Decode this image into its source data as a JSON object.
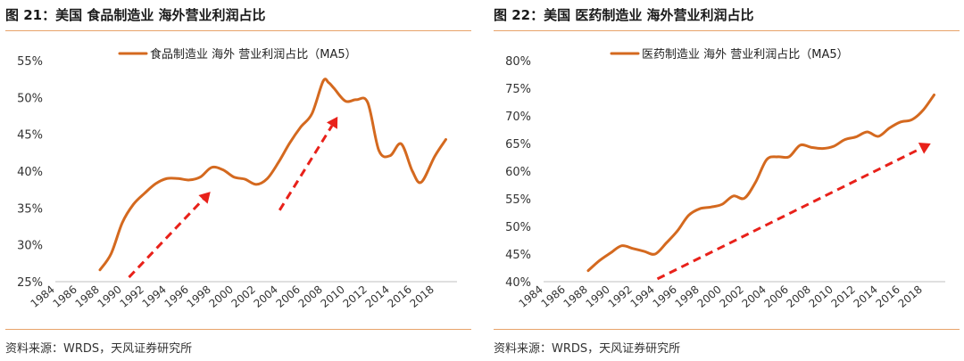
{
  "source_text": "资料来源：WRDS，天风证券研究所",
  "colors": {
    "line": "#d4691f",
    "arrow": "#e8211a",
    "rule": "#e8a36a"
  },
  "chart_data": [
    {
      "type": "line",
      "title": "图 21：美国  食品制造业  海外营业利润占比",
      "legend": "食品制造业 海外 营业利润占比（MA5）",
      "legend_position": "top",
      "ylim": [
        0.25,
        0.55
      ],
      "yticks": [
        {
          "v": 0.25,
          "label": "25%"
        },
        {
          "v": 0.3,
          "label": "30%"
        },
        {
          "v": 0.35,
          "label": "35%"
        },
        {
          "v": 0.4,
          "label": "40%"
        },
        {
          "v": 0.45,
          "label": "45%"
        },
        {
          "v": 0.5,
          "label": "50%"
        },
        {
          "v": 0.55,
          "label": "55%"
        }
      ],
      "xlim": [
        1984,
        2020
      ],
      "xticks": [
        "1984",
        "1986",
        "1988",
        "1990",
        "1992",
        "1994",
        "1996",
        "1998",
        "2000",
        "2002",
        "2004",
        "2006",
        "2008",
        "2010",
        "2012",
        "2014",
        "2016",
        "2018"
      ],
      "series": [
        {
          "name": "食品制造业 海外 营业利润占比（MA5）",
          "x": [
            1988,
            1989,
            1990,
            1991,
            1992,
            1993,
            1994,
            1995,
            1996,
            1997,
            1998,
            1999,
            2000,
            2001,
            2002,
            2003,
            2004,
            2005,
            2006,
            2007,
            2008,
            2008.5,
            2009,
            2010,
            2011,
            2012,
            2013,
            2014,
            2015,
            2016,
            2016.8,
            2018,
            2019
          ],
          "y": [
            0.266,
            0.288,
            0.33,
            0.355,
            0.37,
            0.383,
            0.39,
            0.39,
            0.388,
            0.392,
            0.405,
            0.402,
            0.392,
            0.389,
            0.382,
            0.39,
            0.412,
            0.438,
            0.46,
            0.478,
            0.522,
            0.52,
            0.512,
            0.495,
            0.497,
            0.493,
            0.428,
            0.421,
            0.437,
            0.4,
            0.385,
            0.42,
            0.443
          ]
        }
      ],
      "trend_arrows": [
        {
          "from": [
            1990.6,
            0.256
          ],
          "to": [
            1997.9,
            0.372
          ]
        },
        {
          "from": [
            2004.1,
            0.347
          ],
          "to": [
            2009.3,
            0.474
          ]
        }
      ]
    },
    {
      "type": "line",
      "title": "图 22：美国  医药制造业  海外营业利润占比",
      "legend": "医药制造业 海外 营业利润占比（MA5）",
      "legend_position": "top",
      "ylim": [
        0.4,
        0.8
      ],
      "yticks": [
        {
          "v": 0.4,
          "label": "40%"
        },
        {
          "v": 0.45,
          "label": "45%"
        },
        {
          "v": 0.5,
          "label": "50%"
        },
        {
          "v": 0.55,
          "label": "55%"
        },
        {
          "v": 0.6,
          "label": "60%"
        },
        {
          "v": 0.65,
          "label": "65%"
        },
        {
          "v": 0.7,
          "label": "70%"
        },
        {
          "v": 0.75,
          "label": "75%"
        },
        {
          "v": 0.8,
          "label": "80%"
        }
      ],
      "xlim": [
        1984,
        2020
      ],
      "xticks": [
        "1984",
        "1986",
        "1988",
        "1990",
        "1992",
        "1994",
        "1996",
        "1998",
        "2000",
        "2002",
        "2004",
        "2006",
        "2008",
        "2010",
        "2012",
        "2014",
        "2016",
        "2018"
      ],
      "series": [
        {
          "name": "医药制造业 海外 营业利润占比（MA5）",
          "x": [
            1988,
            1989,
            1990,
            1991,
            1992,
            1993,
            1994,
            1995,
            1996,
            1997,
            1998,
            1999,
            2000,
            2001,
            2002,
            2003,
            2004,
            2005,
            2006,
            2007,
            2008,
            2009,
            2010,
            2011,
            2012,
            2013,
            2014,
            2015,
            2016,
            2017,
            2018,
            2019
          ],
          "y": [
            0.42,
            0.438,
            0.452,
            0.465,
            0.46,
            0.455,
            0.45,
            0.47,
            0.492,
            0.52,
            0.532,
            0.535,
            0.54,
            0.555,
            0.551,
            0.58,
            0.621,
            0.626,
            0.626,
            0.647,
            0.643,
            0.641,
            0.645,
            0.657,
            0.662,
            0.671,
            0.663,
            0.678,
            0.689,
            0.693,
            0.71,
            0.738
          ]
        }
      ],
      "trend_arrows": [
        {
          "from": [
            1994.2,
            0.405
          ],
          "to": [
            2018.7,
            0.65
          ]
        }
      ]
    }
  ]
}
